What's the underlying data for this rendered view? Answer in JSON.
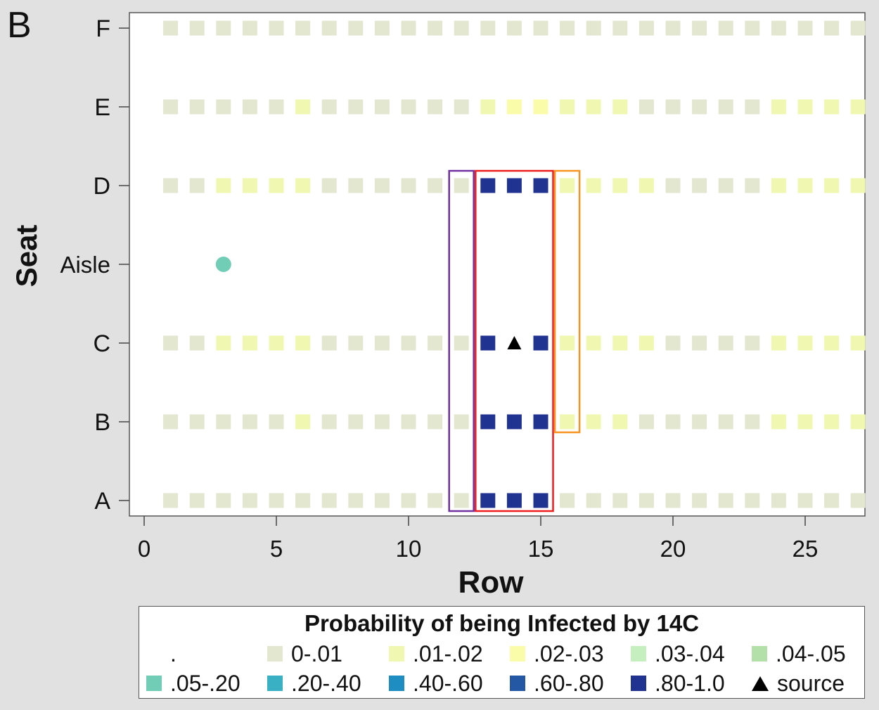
{
  "panel_label": "B",
  "chart_data": {
    "type": "heatmap",
    "title": "Probability of being Infected by 14C",
    "xlabel": "Row",
    "ylabel": "Seat",
    "xlim": [
      -0.1,
      27.4
    ],
    "xticks": [
      0,
      5,
      10,
      15,
      20,
      25
    ],
    "seats": [
      "A",
      "B",
      "C",
      "Aisle",
      "D",
      "E",
      "F"
    ],
    "colors": {
      "0-.01": "#e4e7d0",
      ".01-.02": "#f0f7b0",
      ".02-.03": "#fbfcaa",
      ".03-.04": "#c6efbf",
      ".04-.05": "#b3dfa9",
      ".05-.20": "#72cdb7",
      ".20-.40": "#3ab0c5",
      ".40-.60": "#1e8dc1",
      ".60-.80": "#2458a5",
      ".80-1.0": "#213391",
      "source": "#000000"
    },
    "grid": {
      "F": [
        "0-.01",
        "0-.01",
        "0-.01",
        "0-.01",
        "0-.01",
        "0-.01",
        "0-.01",
        "0-.01",
        "0-.01",
        "0-.01",
        "0-.01",
        "0-.01",
        "0-.01",
        "0-.01",
        "0-.01",
        "0-.01",
        "0-.01",
        "0-.01",
        "0-.01",
        "0-.01",
        "0-.01",
        "0-.01",
        "0-.01",
        "0-.01",
        "0-.01",
        "0-.01",
        "0-.01"
      ],
      "E": [
        "0-.01",
        "0-.01",
        "0-.01",
        "0-.01",
        "0-.01",
        ".01-.02",
        "0-.01",
        "0-.01",
        "0-.01",
        "0-.01",
        "0-.01",
        "0-.01",
        ".01-.02",
        ".02-.03",
        ".02-.03",
        ".01-.02",
        ".01-.02",
        ".01-.02",
        "0-.01",
        "0-.01",
        "0-.01",
        "0-.01",
        "0-.01",
        ".01-.02",
        ".01-.02",
        ".01-.02",
        ".01-.02"
      ],
      "D": [
        "0-.01",
        "0-.01",
        ".01-.02",
        ".01-.02",
        ".01-.02",
        ".01-.02",
        "0-.01",
        "0-.01",
        "0-.01",
        "0-.01",
        "0-.01",
        "0-.01",
        ".80-1.0",
        ".80-1.0",
        ".80-1.0",
        ".01-.02",
        ".01-.02",
        ".01-.02",
        ".01-.02",
        "0-.01",
        "0-.01",
        "0-.01",
        "0-.01",
        ".01-.02",
        ".01-.02",
        ".01-.02",
        ".01-.02"
      ],
      "C": [
        "0-.01",
        "0-.01",
        ".01-.02",
        ".01-.02",
        ".01-.02",
        ".01-.02",
        "0-.01",
        "0-.01",
        "0-.01",
        "0-.01",
        "0-.01",
        "0-.01",
        ".80-1.0",
        "source",
        ".80-1.0",
        ".01-.02",
        ".01-.02",
        ".01-.02",
        ".01-.02",
        "0-.01",
        "0-.01",
        "0-.01",
        "0-.01",
        ".01-.02",
        ".01-.02",
        ".01-.02",
        ".01-.02"
      ],
      "B": [
        "0-.01",
        "0-.01",
        "0-.01",
        "0-.01",
        "0-.01",
        ".01-.02",
        "0-.01",
        "0-.01",
        "0-.01",
        "0-.01",
        "0-.01",
        "0-.01",
        ".80-1.0",
        ".80-1.0",
        ".80-1.0",
        ".01-.02",
        ".01-.02",
        ".01-.02",
        "0-.01",
        "0-.01",
        "0-.01",
        "0-.01",
        "0-.01",
        ".01-.02",
        ".01-.02",
        ".01-.02",
        ".01-.02"
      ],
      "A": [
        "0-.01",
        "0-.01",
        "0-.01",
        "0-.01",
        "0-.01",
        "0-.01",
        "0-.01",
        "0-.01",
        "0-.01",
        "0-.01",
        "0-.01",
        "0-.01",
        ".80-1.0",
        ".80-1.0",
        ".80-1.0",
        "0-.01",
        "0-.01",
        "0-.01",
        "0-.01",
        "0-.01",
        "0-.01",
        "0-.01",
        "0-.01",
        "0-.01",
        "0-.01",
        "0-.01",
        "0-.01"
      ]
    },
    "aisle_points": [
      {
        "row": 3,
        "category": ".05-.20"
      }
    ],
    "highlight_boxes": [
      {
        "rows": [
          12,
          12
        ],
        "seats": [
          "A",
          "D"
        ],
        "color": "#7030a0"
      },
      {
        "rows": [
          13,
          15
        ],
        "seats": [
          "A",
          "D"
        ],
        "color": "#ee1c1c"
      },
      {
        "rows": [
          16,
          16
        ],
        "seats": [
          "B",
          "D"
        ],
        "color": "#f7931e"
      }
    ],
    "legend": {
      "title": "Probability of being Infected by 14C",
      "items": [
        {
          "label": ".",
          "key": "missing"
        },
        {
          "label": "0-.01",
          "key": "0-.01"
        },
        {
          "label": ".01-.02",
          "key": ".01-.02"
        },
        {
          "label": ".02-.03",
          "key": ".02-.03"
        },
        {
          "label": ".03-.04",
          "key": ".03-.04"
        },
        {
          "label": ".04-.05",
          "key": ".04-.05"
        },
        {
          "label": ".05-.20",
          "key": ".05-.20"
        },
        {
          "label": ".20-.40",
          "key": ".20-.40"
        },
        {
          "label": ".40-.60",
          "key": ".40-.60"
        },
        {
          "label": ".60-.80",
          "key": ".60-.80"
        },
        {
          "label": ".80-1.0",
          "key": ".80-1.0"
        },
        {
          "label": "source",
          "key": "source"
        }
      ]
    }
  }
}
